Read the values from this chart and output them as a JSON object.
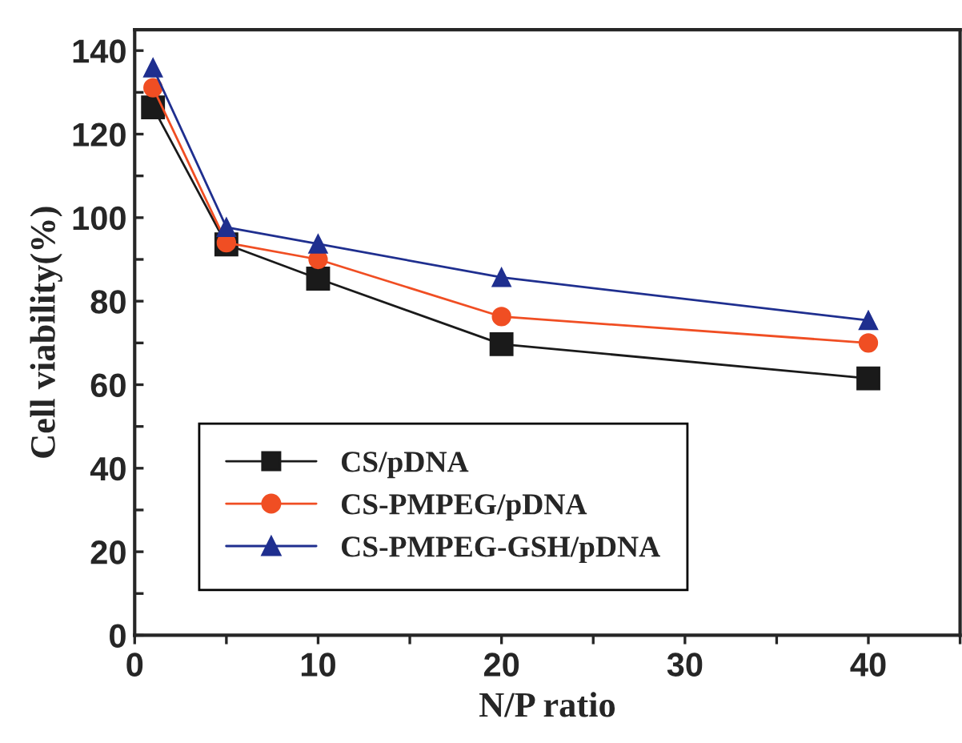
{
  "chart_data": {
    "type": "line",
    "xlabel": "N/P ratio",
    "ylabel": "Cell viability(%)",
    "x": [
      1,
      5,
      10,
      20,
      40
    ],
    "series": [
      {
        "name": "CS/pDNA",
        "color": "#1a1a1a",
        "marker": "square",
        "values": [
          126.4,
          93.6,
          85.4,
          69.7,
          61.5
        ]
      },
      {
        "name": "CS-PMPEG/pDNA",
        "color": "#f04e23",
        "marker": "circle",
        "values": [
          131.1,
          94.0,
          90.0,
          76.3,
          70.0
        ]
      },
      {
        "name": "CS-PMPEG-GSH/pDNA",
        "color": "#1f2f8f",
        "marker": "triangle",
        "values": [
          135.9,
          97.7,
          93.7,
          85.7,
          75.4
        ]
      }
    ],
    "xlim": [
      0,
      45
    ],
    "ylim": [
      0,
      145
    ],
    "xticks": [
      0,
      {
        "value": 5,
        "label": null
      },
      10,
      {
        "value": 15,
        "label": null
      },
      20,
      {
        "value": 25,
        "label": null
      },
      30,
      {
        "value": 35,
        "label": null
      },
      40,
      {
        "value": 45,
        "label": null
      }
    ],
    "yticks": [
      0,
      {
        "value": 10,
        "label": null
      },
      20,
      {
        "value": 30,
        "label": null
      },
      40,
      {
        "value": 50,
        "label": null
      },
      60,
      {
        "value": 70,
        "label": null
      },
      80,
      {
        "value": 90,
        "label": null
      },
      100,
      {
        "value": 110,
        "label": null
      },
      120,
      {
        "value": 130,
        "label": null
      },
      140
    ],
    "grid": false,
    "legend": "bottom left",
    "line_style": "solid"
  }
}
